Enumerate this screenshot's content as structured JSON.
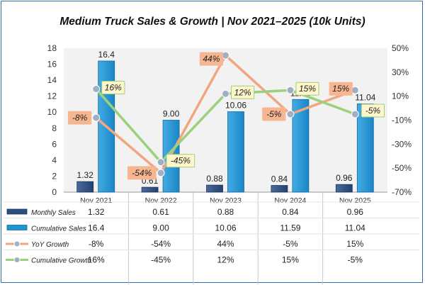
{
  "chart_data": {
    "type": "bar",
    "title": "Medium Truck Sales & Growth | Nov 2021–2025 (10k Units)",
    "categories": [
      "Nov 2021",
      "Nov 2022",
      "Nov 2023",
      "Nov 2024",
      "Nov 2025"
    ],
    "series": [
      {
        "name": "Monthly Sales",
        "type": "bar",
        "axis": "left",
        "values": [
          1.32,
          0.61,
          0.88,
          0.84,
          0.96
        ],
        "labels": [
          "1.32",
          "0.61",
          "0.88",
          "0.84",
          "0.96"
        ],
        "color": "#2b4d80"
      },
      {
        "name": "Cumulative Sales",
        "type": "bar",
        "axis": "left",
        "values": [
          16.4,
          9.0,
          10.06,
          11.59,
          11.04
        ],
        "labels": [
          "16.4",
          "9.00",
          "10.06",
          "11.59",
          "11.04"
        ],
        "color": "#1f93d3"
      },
      {
        "name": "YoY Growth",
        "type": "line",
        "axis": "right",
        "values": [
          -8,
          -54,
          44,
          -5,
          15
        ],
        "labels": [
          "-8%",
          "-54%",
          "44%",
          "-5%",
          "15%"
        ],
        "color": "#f2a67f"
      },
      {
        "name": "Cumulative Growth",
        "type": "line",
        "axis": "right",
        "values": [
          16,
          -45,
          12,
          15,
          -5
        ],
        "labels": [
          "16%",
          "-45%",
          "12%",
          "15%",
          "-5%"
        ],
        "color": "#9ccf7e"
      }
    ],
    "y_left": {
      "lim": [
        0,
        18
      ],
      "ticks": [
        0,
        2,
        4,
        6,
        8,
        10,
        12,
        14,
        16,
        18
      ]
    },
    "y_right": {
      "lim": [
        -70,
        50
      ],
      "ticks": [
        "50%",
        "30%",
        "10%",
        "-10%",
        "-30%",
        "-50%",
        "-70%"
      ]
    },
    "grid": false,
    "legend": "data-table-below"
  }
}
